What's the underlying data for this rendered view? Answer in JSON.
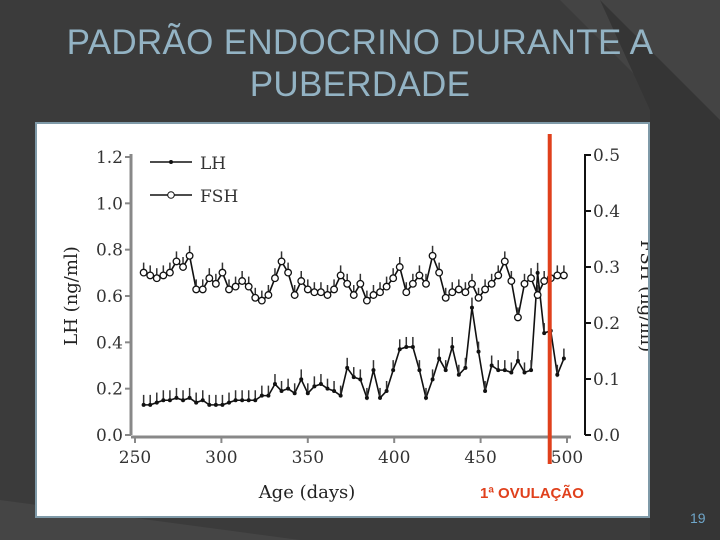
{
  "slide": {
    "title_line1": "PADRÃO ENDOCRINO DURANTE A",
    "title_line2": "PUBERDADE",
    "page_number": "19",
    "annotation": "1ª OVULAÇÃO",
    "annotation_color": "#e0401c"
  },
  "chart_data": {
    "type": "line",
    "xlabel": "Age (days)",
    "ylabel_left": "LH (ng/ml)",
    "ylabel_right": "FSH (ng/ml)",
    "xlim": [
      250,
      500
    ],
    "ylim_left": [
      0,
      1.2
    ],
    "ylim_right": [
      0,
      0.5
    ],
    "xticks": [
      "250",
      "300",
      "350",
      "400",
      "450",
      "500"
    ],
    "yticks_left": [
      "0.0",
      "0.2",
      "0.4",
      "0.6",
      "0.8",
      "1.0",
      "1.2"
    ],
    "yticks_right": [
      "0.0",
      "0.1",
      "0.2",
      "0.3",
      "0.4",
      "0.5"
    ],
    "legend": [
      "LH",
      "FSH"
    ],
    "legend_position": "top-left",
    "x_start": 255,
    "x_step": 3.8,
    "ovulation_day": 490,
    "series": [
      {
        "name": "LH",
        "axis": "left",
        "marker": "filled",
        "values": [
          0.13,
          0.13,
          0.14,
          0.15,
          0.15,
          0.16,
          0.15,
          0.16,
          0.14,
          0.15,
          0.13,
          0.13,
          0.13,
          0.14,
          0.15,
          0.15,
          0.15,
          0.15,
          0.17,
          0.17,
          0.22,
          0.19,
          0.2,
          0.18,
          0.24,
          0.18,
          0.21,
          0.22,
          0.2,
          0.19,
          0.17,
          0.29,
          0.25,
          0.24,
          0.16,
          0.28,
          0.16,
          0.19,
          0.28,
          0.37,
          0.38,
          0.38,
          0.28,
          0.16,
          0.24,
          0.33,
          0.28,
          0.38,
          0.26,
          0.29,
          0.55,
          0.36,
          0.19,
          0.3,
          0.28,
          0.28,
          0.27,
          0.32,
          0.27,
          0.28,
          0.7,
          0.44,
          0.45,
          0.26,
          0.33
        ]
      },
      {
        "name": "FSH",
        "axis": "right",
        "marker": "open",
        "values": [
          0.29,
          0.285,
          0.28,
          0.285,
          0.29,
          0.31,
          0.3,
          0.32,
          0.26,
          0.26,
          0.28,
          0.27,
          0.29,
          0.26,
          0.265,
          0.275,
          0.265,
          0.245,
          0.24,
          0.25,
          0.28,
          0.31,
          0.29,
          0.25,
          0.275,
          0.26,
          0.255,
          0.255,
          0.25,
          0.26,
          0.285,
          0.27,
          0.25,
          0.27,
          0.24,
          0.25,
          0.255,
          0.265,
          0.28,
          0.3,
          0.255,
          0.27,
          0.285,
          0.27,
          0.32,
          0.29,
          0.245,
          0.255,
          0.26,
          0.255,
          0.27,
          0.245,
          0.26,
          0.27,
          0.285,
          0.31,
          0.275,
          0.21,
          0.27,
          0.28,
          0.25,
          0.275,
          0.28,
          0.285,
          0.285
        ]
      }
    ]
  }
}
